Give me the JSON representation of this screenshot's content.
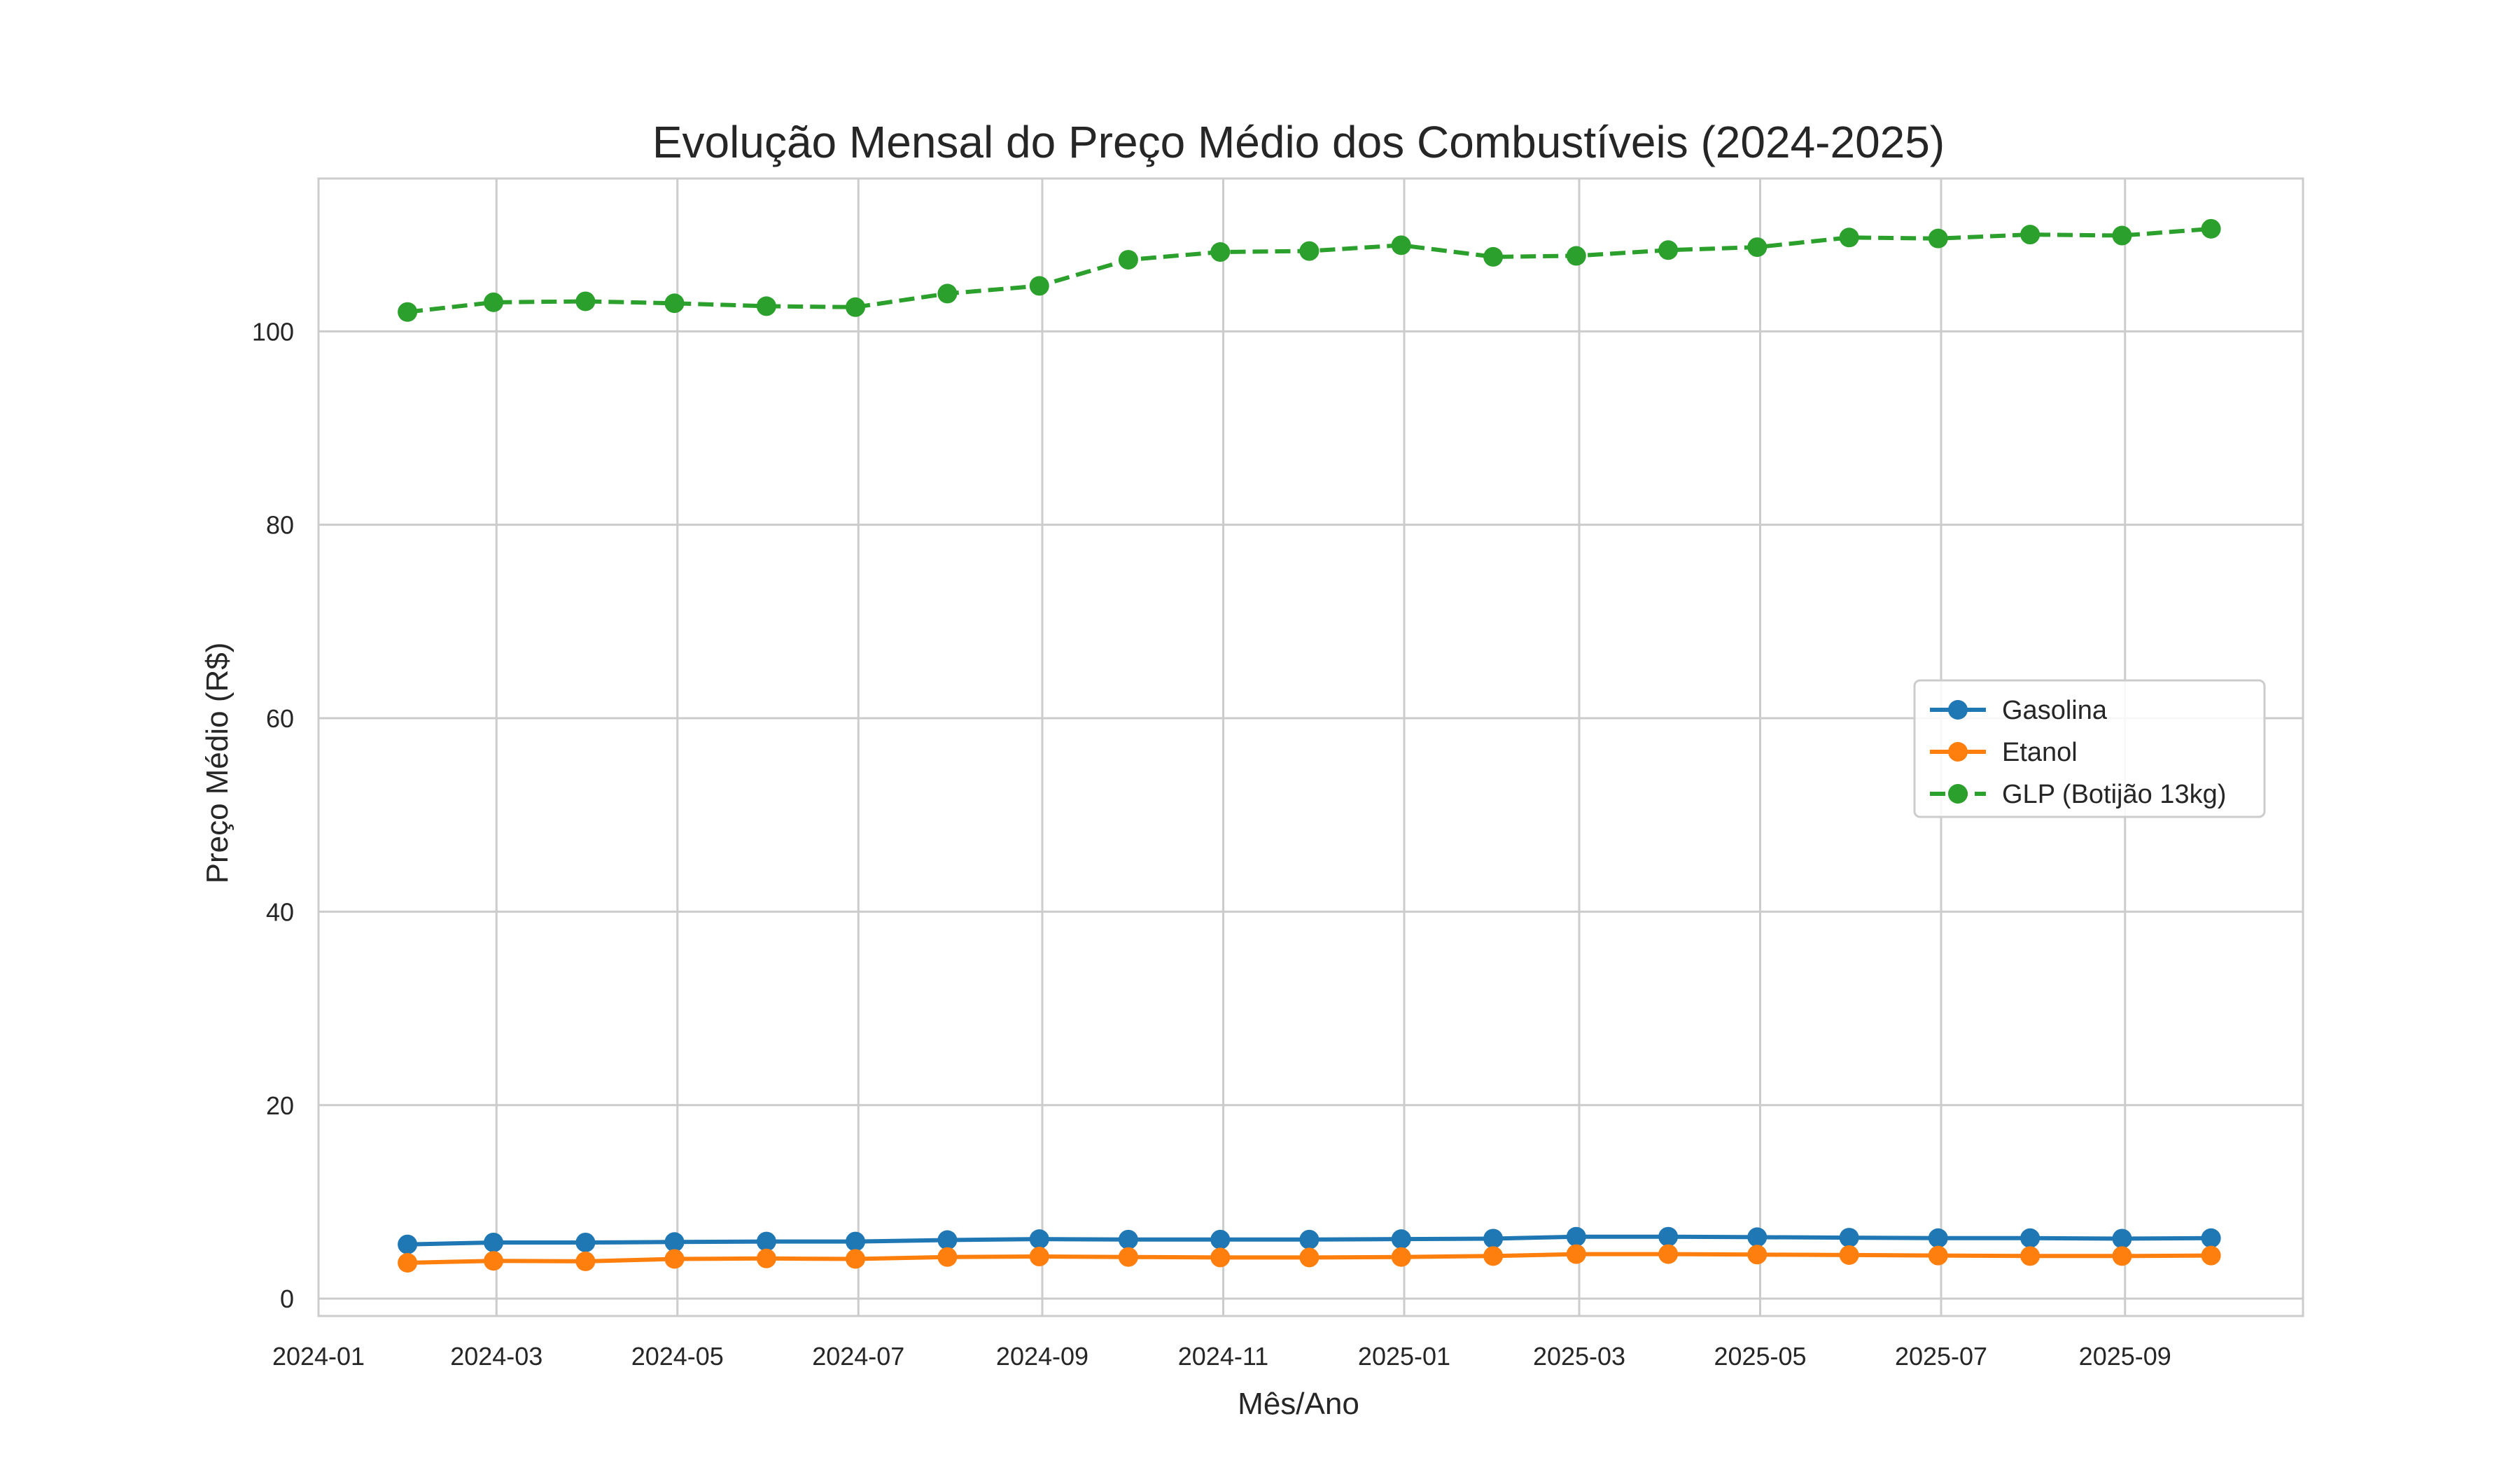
{
  "chart_data": {
    "type": "line",
    "title": "Evolução Mensal do Preço Médio dos Combustíveis (2024-2025)",
    "xlabel": "Mês/Ano",
    "ylabel": "Preço Médio (R$)",
    "x_tick_labels": [
      "2024-01",
      "2024-03",
      "2024-05",
      "2024-07",
      "2024-09",
      "2024-11",
      "2025-01",
      "2025-03",
      "2025-05",
      "2025-07",
      "2025-09"
    ],
    "y_ticks": [
      0,
      20,
      40,
      60,
      80,
      100
    ],
    "x_range": [
      "2024-01-01",
      "2025-10-31"
    ],
    "ylim": [
      -1.8,
      115.8
    ],
    "grid": true,
    "legend_position": "center-right",
    "x": [
      "2024-01-31",
      "2024-02-29",
      "2024-03-31",
      "2024-04-30",
      "2024-05-31",
      "2024-06-30",
      "2024-07-31",
      "2024-08-31",
      "2024-09-30",
      "2024-10-31",
      "2024-11-30",
      "2024-12-31",
      "2025-01-31",
      "2025-02-28",
      "2025-03-31",
      "2025-04-30",
      "2025-05-31",
      "2025-06-30",
      "2025-07-31",
      "2025-08-31",
      "2025-09-30"
    ],
    "series": [
      {
        "name": "Gasolina",
        "color": "#1f77b4",
        "line_style": "solid",
        "values": [
          5.6,
          5.8,
          5.8,
          5.85,
          5.9,
          5.9,
          6.05,
          6.15,
          6.1,
          6.1,
          6.1,
          6.15,
          6.2,
          6.4,
          6.4,
          6.35,
          6.3,
          6.25,
          6.25,
          6.2,
          6.25
        ]
      },
      {
        "name": "Etanol",
        "color": "#ff7f0e",
        "line_style": "solid",
        "values": [
          3.7,
          3.9,
          3.85,
          4.1,
          4.15,
          4.1,
          4.3,
          4.35,
          4.3,
          4.25,
          4.25,
          4.3,
          4.4,
          4.6,
          4.6,
          4.55,
          4.5,
          4.45,
          4.4,
          4.4,
          4.45
        ]
      },
      {
        "name": "GLP (Botijão 13kg)",
        "color": "#2ca02c",
        "line_style": "dashed",
        "values": [
          102.0,
          103.0,
          103.1,
          102.9,
          102.6,
          102.5,
          103.9,
          104.7,
          107.4,
          108.2,
          108.3,
          108.9,
          107.7,
          107.8,
          108.4,
          108.7,
          109.7,
          109.6,
          110.0,
          109.9,
          110.6
        ]
      }
    ]
  }
}
